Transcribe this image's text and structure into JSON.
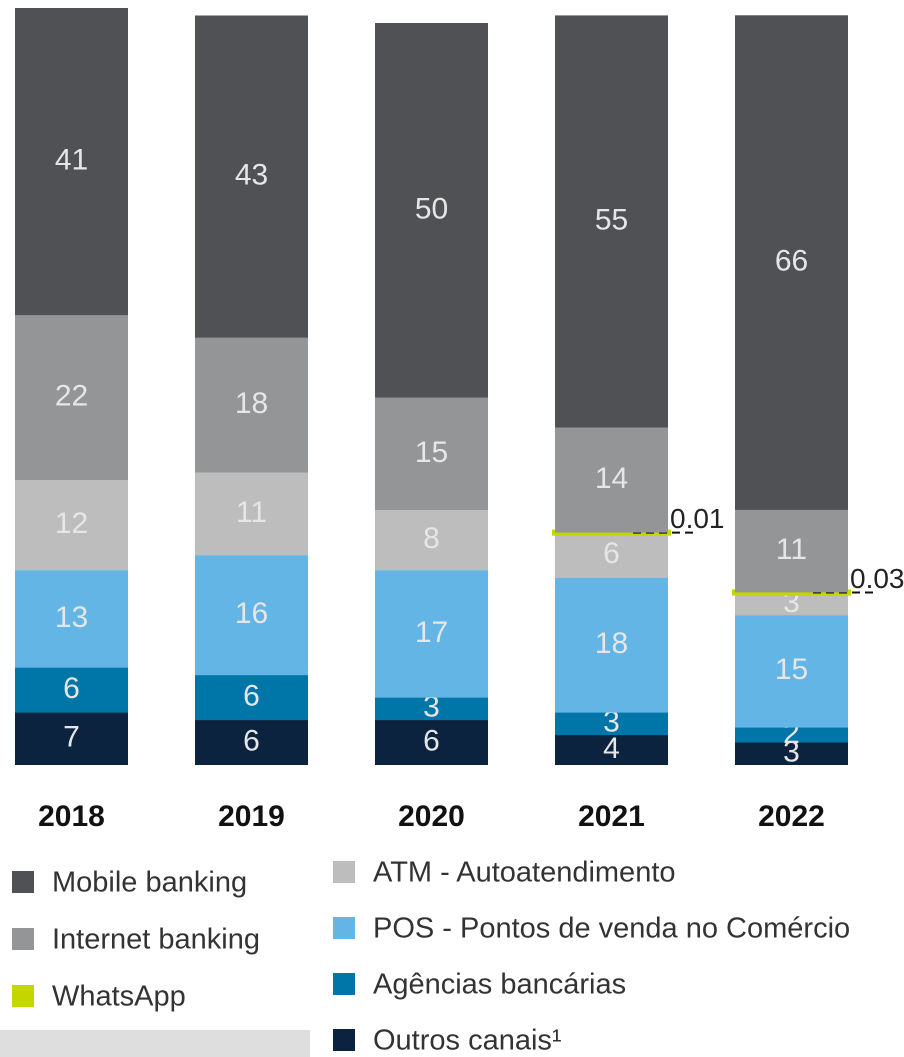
{
  "chart_data": {
    "type": "stacked-bar",
    "categories": [
      "2018",
      "2019",
      "2020",
      "2021",
      "2022"
    ],
    "series": [
      {
        "name": "Mobile banking",
        "color": "#505155",
        "values": [
          41,
          43,
          50,
          55,
          66
        ]
      },
      {
        "name": "Internet banking",
        "color": "#939597",
        "values": [
          22,
          18,
          15,
          14,
          11
        ]
      },
      {
        "name": "WhatsApp",
        "color": "#c4d600",
        "values": [
          null,
          null,
          null,
          0.01,
          0.03
        ]
      },
      {
        "name": "ATM - Autoatendimento",
        "color": "#bdbdbd",
        "values": [
          12,
          11,
          8,
          6,
          3
        ]
      },
      {
        "name": "POS - Pontos de venda no Comércio",
        "color": "#62b5e5",
        "values": [
          13,
          16,
          17,
          18,
          15
        ]
      },
      {
        "name": "Agências bancárias",
        "color": "#0076a8",
        "values": [
          6,
          6,
          3,
          3,
          2
        ]
      },
      {
        "name": "Outros canais¹",
        "color": "#0c2340",
        "values": [
          7,
          6,
          6,
          4,
          3
        ]
      }
    ]
  }
}
